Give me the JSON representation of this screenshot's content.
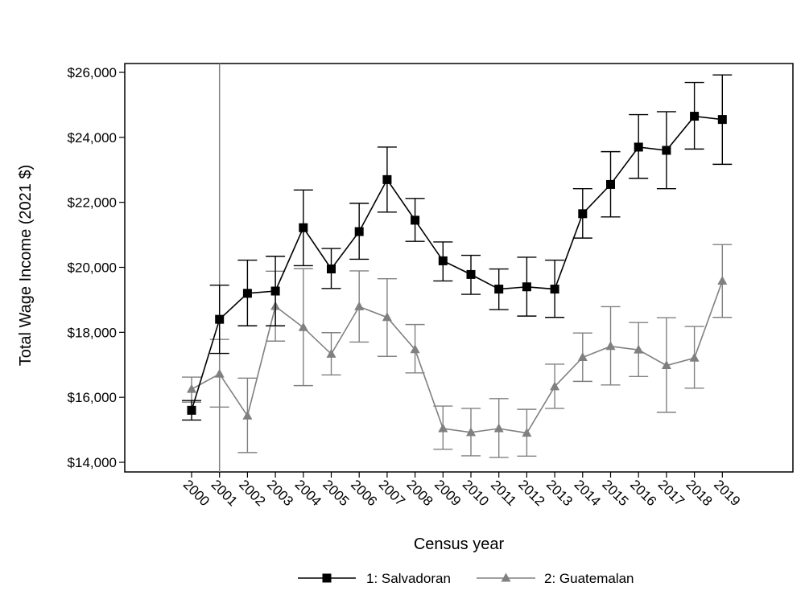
{
  "chart_data": {
    "type": "line",
    "xlabel": "Census year",
    "ylabel": "Total Wage Income (2021 $)",
    "ylim": [
      14000,
      26000
    ],
    "yticks": [
      14000,
      16000,
      18000,
      20000,
      22000,
      24000,
      26000
    ],
    "ytick_labels": [
      "$14,000",
      "$16,000",
      "$18,000",
      "$20,000",
      "$22,000",
      "$24,000",
      "$26,000"
    ],
    "x": [
      "2000",
      "2001",
      "2002",
      "2003",
      "2004",
      "2005",
      "2006",
      "2007",
      "2008",
      "2009",
      "2010",
      "2011",
      "2012",
      "2013",
      "2014",
      "2015",
      "2016",
      "2017",
      "2018",
      "2019"
    ],
    "reference_line_x": "2001",
    "grid": false,
    "legend_position": "bottom",
    "series": [
      {
        "name": "1: Salvadoran",
        "color": "#000000",
        "marker": "square",
        "values": [
          15600,
          18400,
          19200,
          19270,
          21220,
          19950,
          21100,
          22700,
          21450,
          20200,
          19780,
          19330,
          19400,
          19330,
          21650,
          22550,
          23700,
          23600,
          24650,
          24550
        ],
        "ci_low": [
          15300,
          17350,
          18200,
          18200,
          20050,
          19350,
          20250,
          21700,
          20800,
          19580,
          19170,
          18700,
          18500,
          18460,
          20900,
          21550,
          22740,
          22420,
          23640,
          23170
        ],
        "ci_high": [
          15900,
          19450,
          20220,
          20340,
          22380,
          20580,
          21970,
          23700,
          22120,
          20780,
          20370,
          19950,
          20310,
          20220,
          22420,
          23560,
          24700,
          24790,
          25690,
          25920
        ]
      },
      {
        "name": "2: Guatemalan",
        "color": "#808080",
        "marker": "triangle",
        "values": [
          16250,
          16720,
          15430,
          18800,
          18150,
          17330,
          18790,
          18460,
          17470,
          15040,
          14920,
          15040,
          14900,
          16330,
          17230,
          17570,
          17460,
          16980,
          17210,
          19580
        ],
        "ci_low": [
          15850,
          15700,
          14300,
          17730,
          16360,
          16690,
          17700,
          17260,
          16750,
          14400,
          14200,
          14150,
          14190,
          15660,
          16490,
          16380,
          16640,
          15540,
          16280,
          18460
        ],
        "ci_high": [
          16620,
          17780,
          16590,
          19880,
          19960,
          17990,
          19890,
          19650,
          18240,
          15730,
          15660,
          15960,
          15630,
          17020,
          17980,
          18790,
          18300,
          18450,
          18180,
          20700
        ]
      }
    ]
  }
}
